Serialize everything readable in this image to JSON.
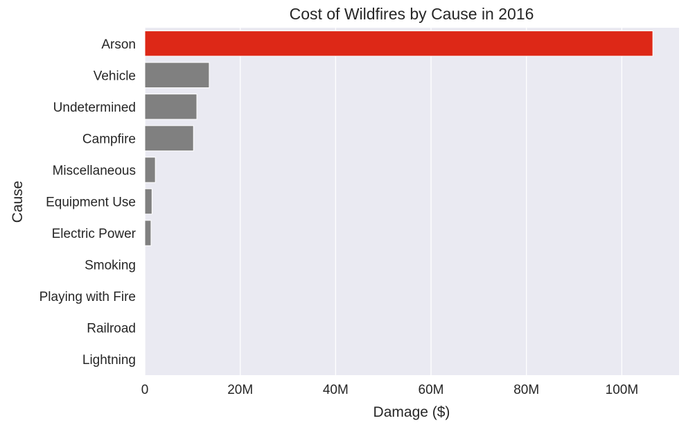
{
  "chart_data": {
    "type": "bar",
    "orientation": "horizontal",
    "title": "Cost of Wildfires by Cause in 2016",
    "xlabel": "Damage ($)",
    "ylabel": "Cause",
    "xlim": [
      0,
      112000000
    ],
    "xticks": [
      0,
      20000000,
      40000000,
      60000000,
      80000000,
      100000000
    ],
    "xtick_labels": [
      "0",
      "20M",
      "40M",
      "60M",
      "80M",
      "100M"
    ],
    "grid": "vertical",
    "categories": [
      "Arson",
      "Vehicle",
      "Undetermined",
      "Campfire",
      "Miscellaneous",
      "Equipment Use",
      "Electric Power",
      "Smoking",
      "Playing with Fire",
      "Railroad",
      "Lightning"
    ],
    "values": [
      106500000,
      13500000,
      10900000,
      10200000,
      2200000,
      1500000,
      1300000,
      0,
      0,
      0,
      0
    ],
    "highlight": "Arson",
    "colors": {
      "highlight": "#dd2817",
      "default": "#808080",
      "background": "#eaeaf2",
      "grid": "#ffffff"
    }
  }
}
